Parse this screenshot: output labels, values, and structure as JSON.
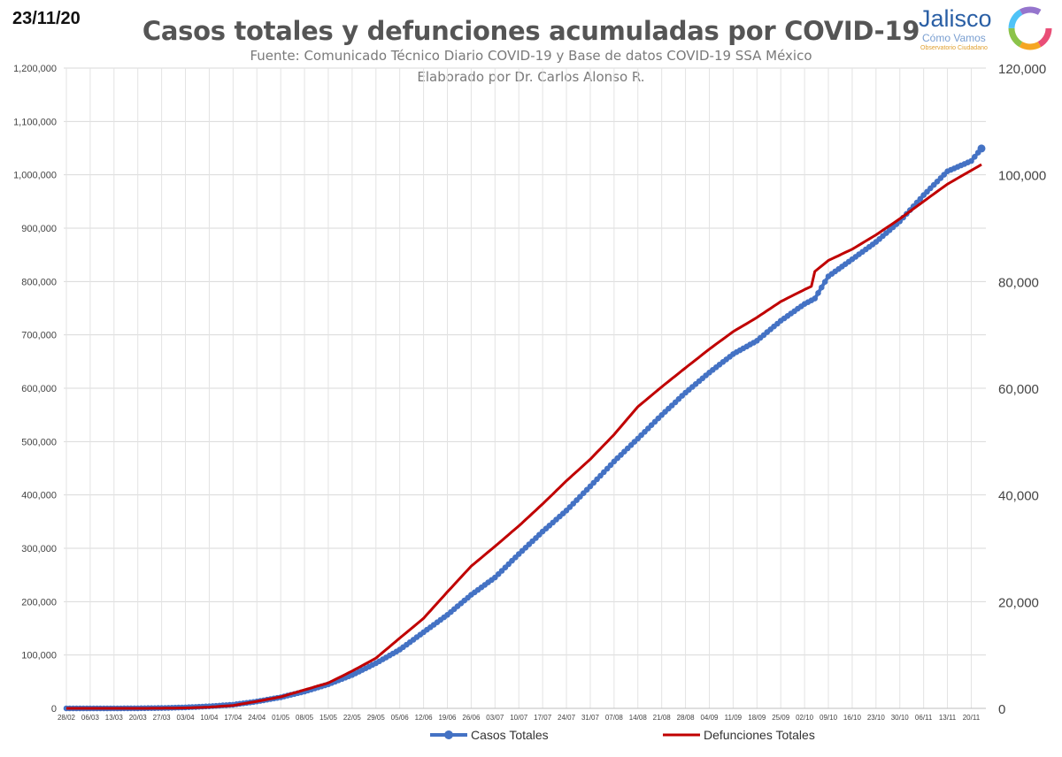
{
  "header": {
    "date": "23/11/20",
    "logo_word": "Jalisco",
    "logo_sub": "Cómo Vamos",
    "logo_tag": "Observatorio Ciudadano"
  },
  "chart_data": {
    "type": "line",
    "title": "Casos totales y defunciones acumuladas por COVID-19",
    "subtitle": "Fuente: Comunicado Técnico Diario COVID-19 y Base de datos COVID-19 SSA México",
    "credit": "Elaborado por Dr. Carlos Alonso R.",
    "x_tick_labels": [
      "28/02",
      "06/03",
      "13/03",
      "20/03",
      "27/03",
      "03/04",
      "10/04",
      "17/04",
      "24/04",
      "01/05",
      "08/05",
      "15/05",
      "22/05",
      "29/05",
      "05/06",
      "12/06",
      "19/06",
      "26/06",
      "03/07",
      "10/07",
      "17/07",
      "24/07",
      "31/07",
      "07/08",
      "14/08",
      "21/08",
      "28/08",
      "04/09",
      "11/09",
      "18/09",
      "25/09",
      "02/10",
      "09/10",
      "16/10",
      "23/10",
      "30/10",
      "06/11",
      "13/11",
      "20/11"
    ],
    "y_left": {
      "ylim": [
        0,
        1200000
      ],
      "ticks": [
        "0",
        "100,000",
        "200,000",
        "300,000",
        "400,000",
        "500,000",
        "600,000",
        "700,000",
        "800,000",
        "900,000",
        "1,000,000",
        "1,100,000",
        "1,200,000"
      ]
    },
    "y_right": {
      "ylim": [
        0,
        120000
      ],
      "ticks": [
        "0",
        "20,000",
        "40,000",
        "60,000",
        "80,000",
        "100,000",
        "120,000"
      ]
    },
    "grid": true,
    "legend_position": "bottom",
    "series": [
      {
        "name": "Casos Totales",
        "axis": "left",
        "color": "#4472c4",
        "marker": "circle",
        "x": [
          "28/02",
          "06/03",
          "13/03",
          "20/03",
          "27/03",
          "03/04",
          "10/04",
          "17/04",
          "24/04",
          "01/05",
          "08/05",
          "15/05",
          "22/05",
          "29/05",
          "05/06",
          "12/06",
          "19/06",
          "26/06",
          "03/07",
          "10/07",
          "17/07",
          "24/07",
          "31/07",
          "07/08",
          "14/08",
          "21/08",
          "28/08",
          "04/09",
          "11/09",
          "18/09",
          "25/09",
          "02/10",
          "05/10",
          "09/10",
          "16/10",
          "23/10",
          "30/10",
          "06/11",
          "13/11",
          "20/11",
          "23/11"
        ],
        "values": [
          1,
          7,
          26,
          203,
          717,
          1890,
          3844,
          6875,
          12872,
          20739,
          31522,
          45032,
          62527,
          84627,
          110026,
          142690,
          175202,
          212802,
          245251,
          289174,
          331298,
          370712,
          416179,
          462690,
          505751,
          549734,
          591712,
          629409,
          663973,
          688954,
          726431,
          757953,
          768000,
          809751,
          841661,
          874171,
          912811,
          961938,
          1006522,
          1025969,
          1049358
        ]
      },
      {
        "name": "Defunciones Totales",
        "axis": "right",
        "color": "#c00000",
        "marker": "none",
        "x": [
          "28/02",
          "06/03",
          "13/03",
          "20/03",
          "27/03",
          "03/04",
          "10/04",
          "17/04",
          "24/04",
          "01/05",
          "08/05",
          "15/05",
          "22/05",
          "29/05",
          "05/06",
          "12/06",
          "19/06",
          "26/06",
          "03/07",
          "10/07",
          "17/07",
          "24/07",
          "31/07",
          "07/08",
          "14/08",
          "21/08",
          "28/08",
          "04/09",
          "11/09",
          "18/09",
          "25/09",
          "02/10",
          "04/10",
          "05/10",
          "09/10",
          "16/10",
          "23/10",
          "30/10",
          "06/11",
          "13/11",
          "20/11",
          "23/11"
        ],
        "values": [
          0,
          0,
          0,
          2,
          16,
          79,
          233,
          546,
          1305,
          2154,
          3465,
          4767,
          6989,
          9415,
          13170,
          16872,
          21825,
          26648,
          30366,
          34191,
          38310,
          42645,
          46688,
          51311,
          56543,
          60254,
          63819,
          67326,
          70604,
          73258,
          76243,
          78492,
          79088,
          81877,
          83945,
          86059,
          88743,
          91753,
          95027,
          98259,
          100823,
          101926
        ]
      }
    ]
  }
}
